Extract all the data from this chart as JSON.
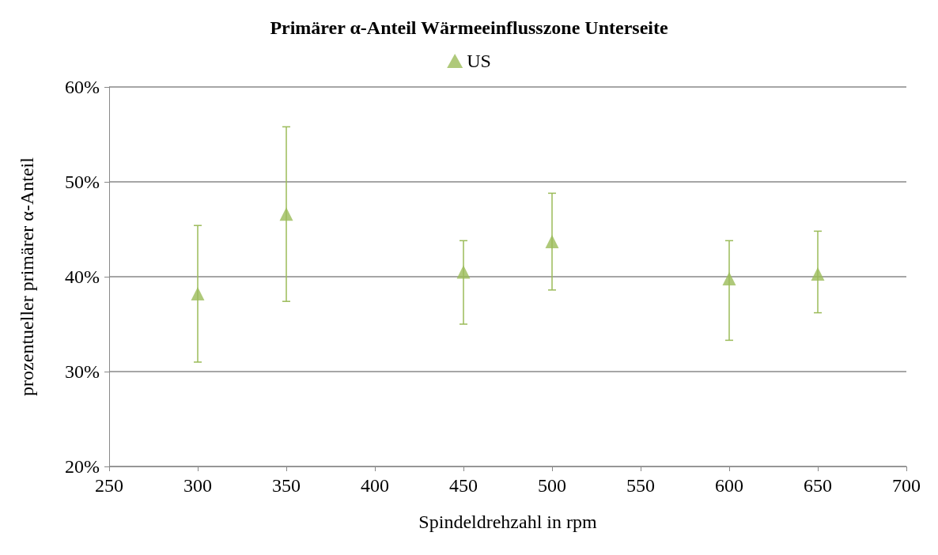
{
  "chart_data": {
    "type": "scatter",
    "title": "Primärer α-Anteil Wärmeeinflusszone Unterseite",
    "xlabel": "Spindeldrehzahl in rpm",
    "ylabel": "prozentueller primärer α-Anteil",
    "x": [
      300,
      350,
      450,
      500,
      600,
      650
    ],
    "series": [
      {
        "name": "US",
        "color": "#9bbb59",
        "values": [
          38.2,
          46.6,
          40.5,
          43.7,
          39.8,
          40.3
        ],
        "errors": [
          [
            31.0,
            45.4
          ],
          [
            37.4,
            55.8
          ],
          [
            35.0,
            43.8
          ],
          [
            38.6,
            48.8
          ],
          [
            33.3,
            43.8
          ],
          [
            36.2,
            44.8
          ]
        ]
      }
    ],
    "xlim": [
      250,
      700
    ],
    "xticks": [
      250,
      300,
      350,
      400,
      450,
      500,
      550,
      600,
      650,
      700
    ],
    "ylim": [
      20,
      60
    ],
    "yticks": [
      {
        "value": 20,
        "label": "20%"
      },
      {
        "value": 30,
        "label": "30%"
      },
      {
        "value": 40,
        "label": "40%"
      },
      {
        "value": 50,
        "label": "50%"
      },
      {
        "value": 60,
        "label": "60%"
      }
    ],
    "grid": "y",
    "legend": "top",
    "marker": "triangle"
  }
}
